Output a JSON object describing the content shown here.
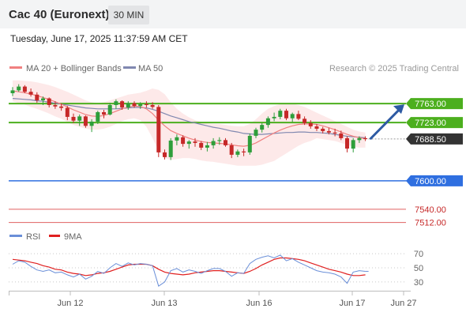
{
  "header": {
    "instrument": "Cac 40 (Euronext)",
    "timeframe": "30 MIN",
    "datetime": "Tuesday, June 17, 2025 11:37:59 AM CET"
  },
  "colors": {
    "up": "#2e9e3a",
    "down": "#c62828",
    "ma20": "#f08080",
    "bands": "#fde4e4",
    "ma50": "#8088b0",
    "resistance": "#4caf1e",
    "current": "#333333",
    "pivot": "#2f6fe0",
    "support": "#e06060",
    "arrow": "#2d5aa3",
    "rsi": "#6a8fd8",
    "rsi_ma": "#e02020",
    "grid": "#c8c8c8"
  },
  "chart_data": [
    {
      "type": "candlestick",
      "legend": {
        "ma20_bb": "MA 20 + Bollinger Bands",
        "ma50": "MA 50"
      },
      "credit": "Research © 2025 Trading Central",
      "x_ticks": [
        "Jun 12",
        "Jun 13",
        "Jun 16",
        "Jun 17",
        "Jun 27"
      ],
      "ylim": [
        7498,
        7815
      ],
      "levels": [
        {
          "value": 7763.0,
          "label": "7763.00",
          "kind": "resistance"
        },
        {
          "value": 7723.0,
          "label": "7723.00",
          "kind": "resistance"
        },
        {
          "value": 7688.5,
          "label": "7688.50",
          "kind": "current"
        },
        {
          "value": 7600.0,
          "label": "7600.00",
          "kind": "pivot"
        },
        {
          "value": 7540.0,
          "label": "7540.00",
          "kind": "support"
        },
        {
          "value": 7512.0,
          "label": "7512.00",
          "kind": "support"
        }
      ],
      "candles": [
        [
          7785,
          7798,
          7779,
          7791
        ],
        [
          7791,
          7804,
          7788,
          7799
        ],
        [
          7799,
          7802,
          7785,
          7788
        ],
        [
          7788,
          7795,
          7778,
          7782
        ],
        [
          7782,
          7787,
          7765,
          7770
        ],
        [
          7770,
          7778,
          7760,
          7774
        ],
        [
          7774,
          7776,
          7755,
          7760
        ],
        [
          7760,
          7768,
          7752,
          7757
        ],
        [
          7757,
          7763,
          7748,
          7754
        ],
        [
          7754,
          7758,
          7728,
          7735
        ],
        [
          7735,
          7742,
          7722,
          7727
        ],
        [
          7727,
          7740,
          7716,
          7736
        ],
        [
          7736,
          7738,
          7712,
          7716
        ],
        [
          7716,
          7730,
          7703,
          7725
        ],
        [
          7725,
          7748,
          7720,
          7745
        ],
        [
          7745,
          7750,
          7732,
          7740
        ],
        [
          7740,
          7765,
          7738,
          7760
        ],
        [
          7760,
          7772,
          7752,
          7768
        ],
        [
          7768,
          7770,
          7750,
          7755
        ],
        [
          7755,
          7768,
          7750,
          7764
        ],
        [
          7764,
          7768,
          7754,
          7758
        ],
        [
          7758,
          7766,
          7752,
          7762
        ],
        [
          7762,
          7768,
          7755,
          7760
        ],
        [
          7760,
          7766,
          7752,
          7756
        ],
        [
          7756,
          7760,
          7650,
          7660
        ],
        [
          7660,
          7666,
          7645,
          7650
        ],
        [
          7650,
          7690,
          7644,
          7685
        ],
        [
          7685,
          7698,
          7675,
          7692
        ],
        [
          7692,
          7696,
          7672,
          7678
        ],
        [
          7678,
          7686,
          7668,
          7683
        ],
        [
          7683,
          7690,
          7672,
          7680
        ],
        [
          7680,
          7684,
          7665,
          7670
        ],
        [
          7670,
          7682,
          7662,
          7675
        ],
        [
          7675,
          7690,
          7668,
          7684
        ],
        [
          7684,
          7692,
          7676,
          7686
        ],
        [
          7686,
          7690,
          7672,
          7675
        ],
        [
          7675,
          7680,
          7648,
          7655
        ],
        [
          7655,
          7666,
          7650,
          7662
        ],
        [
          7662,
          7668,
          7652,
          7660
        ],
        [
          7660,
          7700,
          7655,
          7695
        ],
        [
          7695,
          7712,
          7690,
          7708
        ],
        [
          7708,
          7722,
          7702,
          7718
        ],
        [
          7718,
          7736,
          7712,
          7732
        ],
        [
          7732,
          7744,
          7726,
          7735
        ],
        [
          7735,
          7752,
          7730,
          7748
        ],
        [
          7748,
          7752,
          7728,
          7732
        ],
        [
          7732,
          7744,
          7724,
          7741
        ],
        [
          7741,
          7748,
          7728,
          7731
        ],
        [
          7731,
          7736,
          7718,
          7722
        ],
        [
          7722,
          7728,
          7710,
          7715
        ],
        [
          7715,
          7720,
          7705,
          7710
        ],
        [
          7710,
          7714,
          7700,
          7705
        ],
        [
          7705,
          7712,
          7698,
          7702
        ],
        [
          7702,
          7710,
          7694,
          7700
        ],
        [
          7700,
          7706,
          7686,
          7690
        ],
        [
          7690,
          7694,
          7660,
          7668
        ],
        [
          7668,
          7690,
          7660,
          7686
        ],
        [
          7686,
          7694,
          7680,
          7690
        ],
        [
          7690,
          7694,
          7684,
          7688
        ]
      ],
      "ma20": [
        7790,
        7788,
        7786,
        7783,
        7780,
        7776,
        7772,
        7767,
        7762,
        7756,
        7750,
        7745,
        7740,
        7737,
        7736,
        7738,
        7742,
        7747,
        7752,
        7756,
        7758,
        7757,
        7752,
        7742,
        7728,
        7716,
        7706,
        7700,
        7695,
        7690,
        7686,
        7683,
        7681,
        7680,
        7679,
        7678,
        7676,
        7674,
        7673,
        7675,
        7680,
        7687,
        7694,
        7701,
        7707,
        7712,
        7716,
        7719,
        7720,
        7720,
        7719,
        7716,
        7712,
        7708,
        7703,
        7698,
        7694,
        7691,
        7689
      ],
      "bb_upper": [
        7812,
        7812,
        7811,
        7810,
        7808,
        7805,
        7802,
        7798,
        7793,
        7788,
        7782,
        7776,
        7770,
        7766,
        7764,
        7766,
        7770,
        7774,
        7778,
        7782,
        7784,
        7786,
        7790,
        7795,
        7792,
        7783,
        7766,
        7752,
        7742,
        7734,
        7728,
        7724,
        7721,
        7720,
        7720,
        7718,
        7716,
        7715,
        7715,
        7720,
        7730,
        7742,
        7752,
        7758,
        7762,
        7764,
        7763,
        7760,
        7756,
        7750,
        7744,
        7738,
        7732,
        7726,
        7720,
        7714,
        7708,
        7704,
        7702
      ],
      "bb_lower": [
        7768,
        7764,
        7761,
        7756,
        7752,
        7747,
        7742,
        7736,
        7731,
        7724,
        7718,
        7714,
        7710,
        7708,
        7708,
        7710,
        7714,
        7720,
        7726,
        7730,
        7732,
        7728,
        7714,
        7690,
        7664,
        7648,
        7644,
        7646,
        7648,
        7648,
        7646,
        7643,
        7641,
        7640,
        7638,
        7636,
        7634,
        7632,
        7632,
        7632,
        7632,
        7634,
        7638,
        7642,
        7650,
        7658,
        7666,
        7674,
        7680,
        7684,
        7690,
        7688,
        7686,
        7684,
        7680,
        7676,
        7672,
        7670,
        7670
      ],
      "ma50": [
        7774,
        7773,
        7772,
        7771,
        7769,
        7768,
        7766,
        7764,
        7762,
        7760,
        7758,
        7756,
        7754,
        7753,
        7752,
        7752,
        7752,
        7752,
        7753,
        7754,
        7755,
        7755,
        7754,
        7751,
        7747,
        7742,
        7737,
        7733,
        7729,
        7725,
        7722,
        7719,
        7716,
        7713,
        7711,
        7708,
        7705,
        7703,
        7700,
        7699,
        7698,
        7698,
        7699,
        7700,
        7701,
        7702,
        7702,
        7703,
        7703,
        7702,
        7702,
        7701,
        7700,
        7698,
        7696,
        7694,
        7693,
        7692,
        7691
      ]
    },
    {
      "type": "line",
      "legend": {
        "rsi": "RSI",
        "rsi_ma": "9MA"
      },
      "ylim": [
        22,
        78
      ],
      "y_ticks": [
        70,
        50,
        30
      ],
      "rsi": [
        55,
        60,
        58,
        52,
        47,
        45,
        47,
        43,
        44,
        40,
        37,
        41,
        34,
        38,
        45,
        42,
        50,
        56,
        52,
        57,
        54,
        56,
        55,
        53,
        24,
        30,
        46,
        49,
        44,
        47,
        45,
        42,
        46,
        49,
        49,
        45,
        38,
        43,
        42,
        56,
        62,
        65,
        67,
        64,
        68,
        60,
        63,
        58,
        54,
        50,
        46,
        44,
        43,
        41,
        37,
        28,
        44,
        46,
        45
      ],
      "rsi_ma": [
        62,
        61,
        60,
        58,
        56,
        53,
        51,
        48,
        47,
        44,
        42,
        41,
        39,
        40,
        42,
        43,
        45,
        48,
        51,
        54,
        55,
        55,
        55,
        53,
        48,
        44,
        42,
        41,
        40,
        41,
        43,
        44,
        45,
        46,
        46,
        45,
        44,
        43,
        42,
        45,
        49,
        54,
        58,
        62,
        64,
        64,
        63,
        62,
        60,
        57,
        54,
        51,
        48,
        46,
        44,
        41,
        39,
        39,
        40
      ]
    }
  ]
}
